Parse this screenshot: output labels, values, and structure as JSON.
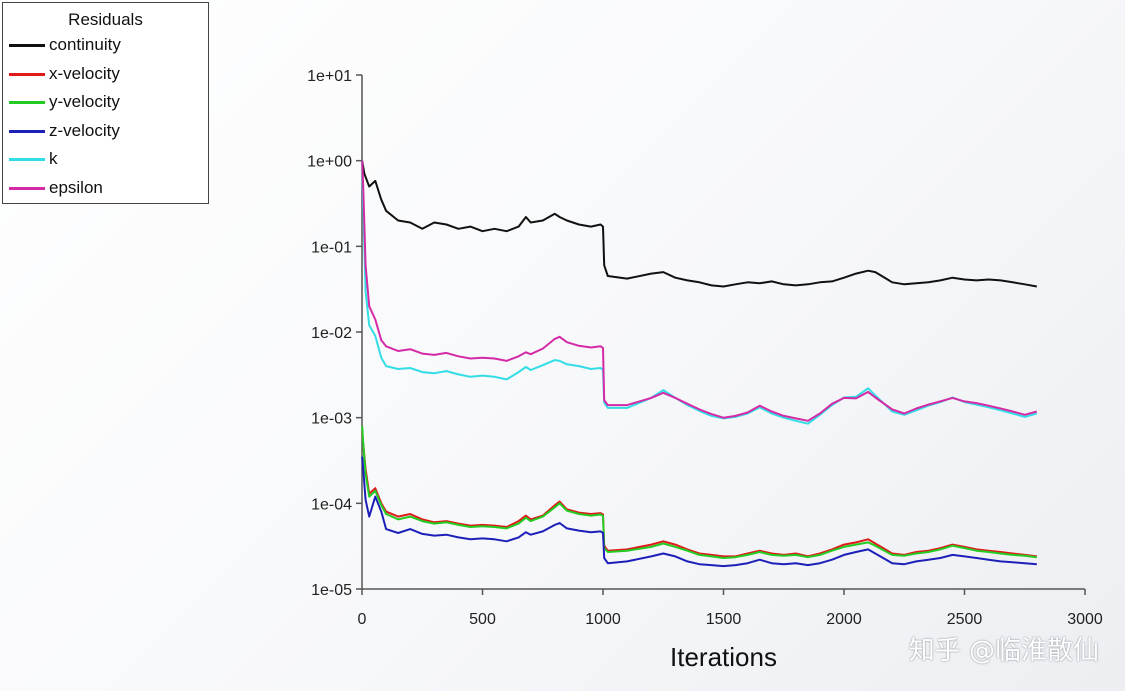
{
  "legend": {
    "title": "Residuals",
    "items": [
      {
        "label": "continuity",
        "color": "#111111"
      },
      {
        "label": "x-velocity",
        "color": "#e01a1a"
      },
      {
        "label": "y-velocity",
        "color": "#22cc22"
      },
      {
        "label": "z-velocity",
        "color": "#1c20b8"
      },
      {
        "label": "k",
        "color": "#33dde6"
      },
      {
        "label": "epsilon",
        "color": "#d42aa6"
      }
    ]
  },
  "watermark": "知乎 @临淮散仙",
  "chart_data": {
    "type": "line",
    "xlabel": "Iterations",
    "ylabel": "",
    "yscale": "log",
    "xlim": [
      0,
      3000
    ],
    "ylim": [
      1e-05,
      10
    ],
    "x_ticks": [
      0,
      500,
      1000,
      1500,
      2000,
      2500,
      3000
    ],
    "x_tick_labels": [
      "0",
      "500",
      "1000",
      "1500",
      "2000",
      "2500",
      "3000"
    ],
    "y_ticks": [
      1e-05,
      0.0001,
      0.001,
      0.01,
      0.1,
      1,
      10
    ],
    "y_tick_labels": [
      "1e-05",
      "1e-04",
      "1e-03",
      "1e-02",
      "1e-01",
      "1e+00",
      "1e+01"
    ],
    "legend_position": "top-left",
    "series": [
      {
        "name": "continuity",
        "color": "#111111",
        "x": [
          1,
          10,
          30,
          55,
          80,
          100,
          150,
          200,
          250,
          300,
          350,
          400,
          450,
          500,
          550,
          600,
          650,
          680,
          700,
          750,
          800,
          820,
          850,
          900,
          950,
          990,
          1000,
          1005,
          1020,
          1100,
          1200,
          1250,
          1300,
          1350,
          1400,
          1450,
          1500,
          1550,
          1600,
          1650,
          1700,
          1750,
          1800,
          1850,
          1900,
          1950,
          2000,
          2050,
          2100,
          2130,
          2200,
          2250,
          2300,
          2350,
          2400,
          2450,
          2500,
          2550,
          2600,
          2650,
          2700,
          2750,
          2800
        ],
        "y": [
          1.0,
          0.7,
          0.5,
          0.58,
          0.35,
          0.26,
          0.2,
          0.19,
          0.16,
          0.19,
          0.18,
          0.16,
          0.17,
          0.15,
          0.16,
          0.15,
          0.17,
          0.22,
          0.19,
          0.2,
          0.24,
          0.22,
          0.2,
          0.18,
          0.17,
          0.18,
          0.17,
          0.06,
          0.045,
          0.042,
          0.048,
          0.05,
          0.043,
          0.04,
          0.038,
          0.035,
          0.034,
          0.036,
          0.038,
          0.037,
          0.039,
          0.036,
          0.035,
          0.036,
          0.038,
          0.039,
          0.043,
          0.048,
          0.052,
          0.05,
          0.038,
          0.036,
          0.037,
          0.038,
          0.04,
          0.043,
          0.041,
          0.04,
          0.041,
          0.04,
          0.038,
          0.036,
          0.034
        ]
      },
      {
        "name": "x-velocity",
        "color": "#e01a1a",
        "x": [
          1,
          5,
          15,
          30,
          55,
          80,
          100,
          150,
          200,
          250,
          300,
          350,
          400,
          450,
          500,
          550,
          600,
          650,
          680,
          700,
          750,
          800,
          820,
          850,
          900,
          950,
          990,
          1000,
          1005,
          1020,
          1100,
          1200,
          1250,
          1300,
          1350,
          1400,
          1450,
          1500,
          1550,
          1600,
          1650,
          1700,
          1750,
          1800,
          1850,
          1900,
          1950,
          2000,
          2050,
          2100,
          2130,
          2200,
          2250,
          2300,
          2350,
          2400,
          2450,
          2500,
          2550,
          2600,
          2650,
          2700,
          2750,
          2800
        ],
        "y": [
          0.0007,
          0.0005,
          0.00025,
          0.00013,
          0.00015,
          0.0001,
          8e-05,
          7e-05,
          7.5e-05,
          6.5e-05,
          6e-05,
          6.2e-05,
          5.8e-05,
          5.5e-05,
          5.6e-05,
          5.5e-05,
          5.3e-05,
          6.2e-05,
          7.2e-05,
          6.5e-05,
          7.2e-05,
          9.5e-05,
          0.000105,
          8.5e-05,
          7.8e-05,
          7.5e-05,
          7.7e-05,
          7.4e-05,
          3.2e-05,
          2.8e-05,
          2.9e-05,
          3.3e-05,
          3.6e-05,
          3.3e-05,
          2.9e-05,
          2.6e-05,
          2.5e-05,
          2.4e-05,
          2.4e-05,
          2.6e-05,
          2.8e-05,
          2.6e-05,
          2.5e-05,
          2.6e-05,
          2.4e-05,
          2.6e-05,
          2.9e-05,
          3.3e-05,
          3.5e-05,
          3.8e-05,
          3.4e-05,
          2.6e-05,
          2.5e-05,
          2.7e-05,
          2.8e-05,
          3e-05,
          3.3e-05,
          3.1e-05,
          2.9e-05,
          2.8e-05,
          2.7e-05,
          2.6e-05,
          2.5e-05,
          2.4e-05
        ]
      },
      {
        "name": "y-velocity",
        "color": "#22cc22",
        "x": [
          1,
          5,
          15,
          30,
          55,
          80,
          100,
          150,
          200,
          250,
          300,
          350,
          400,
          450,
          500,
          550,
          600,
          650,
          680,
          700,
          750,
          800,
          820,
          850,
          900,
          950,
          990,
          1000,
          1005,
          1020,
          1100,
          1200,
          1250,
          1300,
          1350,
          1400,
          1450,
          1500,
          1550,
          1600,
          1650,
          1700,
          1750,
          1800,
          1850,
          1900,
          1950,
          2000,
          2050,
          2100,
          2130,
          2200,
          2250,
          2300,
          2350,
          2400,
          2450,
          2500,
          2550,
          2600,
          2650,
          2700,
          2750,
          2800
        ],
        "y": [
          0.0008,
          0.0005,
          0.00022,
          0.00012,
          0.00014,
          9.5e-05,
          7.5e-05,
          6.5e-05,
          7e-05,
          6.2e-05,
          5.8e-05,
          6e-05,
          5.6e-05,
          5.3e-05,
          5.4e-05,
          5.3e-05,
          5.1e-05,
          5.8e-05,
          6.8e-05,
          6.2e-05,
          7e-05,
          9e-05,
          0.0001,
          8.2e-05,
          7.5e-05,
          7.2e-05,
          7.4e-05,
          7.1e-05,
          3e-05,
          2.7e-05,
          2.8e-05,
          3.1e-05,
          3.4e-05,
          3.1e-05,
          2.8e-05,
          2.5e-05,
          2.4e-05,
          2.3e-05,
          2.35e-05,
          2.5e-05,
          2.7e-05,
          2.5e-05,
          2.45e-05,
          2.5e-05,
          2.35e-05,
          2.5e-05,
          2.8e-05,
          3.1e-05,
          3.3e-05,
          3.5e-05,
          3.2e-05,
          2.5e-05,
          2.45e-05,
          2.6e-05,
          2.7e-05,
          2.9e-05,
          3.2e-05,
          3e-05,
          2.8e-05,
          2.7e-05,
          2.6e-05,
          2.5e-05,
          2.45e-05,
          2.35e-05
        ]
      },
      {
        "name": "z-velocity",
        "color": "#1c20b8",
        "x": [
          1,
          5,
          15,
          30,
          55,
          80,
          100,
          150,
          200,
          250,
          300,
          350,
          400,
          450,
          500,
          550,
          600,
          650,
          680,
          700,
          750,
          800,
          820,
          850,
          900,
          950,
          990,
          1000,
          1005,
          1020,
          1100,
          1200,
          1250,
          1300,
          1350,
          1400,
          1450,
          1500,
          1550,
          1600,
          1650,
          1700,
          1750,
          1800,
          1850,
          1900,
          1950,
          2000,
          2050,
          2100,
          2130,
          2200,
          2250,
          2300,
          2350,
          2400,
          2450,
          2500,
          2550,
          2600,
          2650,
          2700,
          2750,
          2800
        ],
        "y": [
          0.00035,
          0.00025,
          0.00011,
          7e-05,
          0.00012,
          8e-05,
          5e-05,
          4.5e-05,
          5e-05,
          4.4e-05,
          4.2e-05,
          4.3e-05,
          4e-05,
          3.8e-05,
          3.9e-05,
          3.8e-05,
          3.6e-05,
          4e-05,
          4.6e-05,
          4.3e-05,
          4.7e-05,
          5.6e-05,
          5.9e-05,
          5.1e-05,
          4.8e-05,
          4.6e-05,
          4.7e-05,
          4.5e-05,
          2.3e-05,
          2e-05,
          2.1e-05,
          2.4e-05,
          2.6e-05,
          2.4e-05,
          2.1e-05,
          1.95e-05,
          1.9e-05,
          1.85e-05,
          1.9e-05,
          2e-05,
          2.2e-05,
          2e-05,
          1.95e-05,
          2e-05,
          1.9e-05,
          2e-05,
          2.2e-05,
          2.5e-05,
          2.7e-05,
          2.9e-05,
          2.6e-05,
          2e-05,
          1.95e-05,
          2.1e-05,
          2.2e-05,
          2.3e-05,
          2.5e-05,
          2.4e-05,
          2.3e-05,
          2.2e-05,
          2.1e-05,
          2.05e-05,
          2e-05,
          1.95e-05
        ]
      },
      {
        "name": "k",
        "color": "#33dde6",
        "x": [
          1,
          5,
          15,
          30,
          55,
          80,
          100,
          150,
          200,
          250,
          300,
          350,
          400,
          450,
          500,
          550,
          600,
          650,
          680,
          700,
          750,
          800,
          820,
          850,
          900,
          950,
          990,
          1000,
          1005,
          1020,
          1100,
          1200,
          1250,
          1300,
          1350,
          1400,
          1450,
          1500,
          1550,
          1600,
          1650,
          1700,
          1750,
          1800,
          1850,
          1900,
          1950,
          2000,
          2050,
          2100,
          2130,
          2200,
          2250,
          2300,
          2350,
          2400,
          2450,
          2500,
          2550,
          2600,
          2650,
          2700,
          2750,
          2800
        ],
        "y": [
          1.0,
          0.3,
          0.03,
          0.012,
          0.009,
          0.005,
          0.004,
          0.0037,
          0.0038,
          0.0034,
          0.0033,
          0.0035,
          0.0032,
          0.003,
          0.0031,
          0.003,
          0.0028,
          0.0034,
          0.0039,
          0.0036,
          0.0041,
          0.0047,
          0.0046,
          0.0042,
          0.004,
          0.0037,
          0.0038,
          0.0036,
          0.0015,
          0.0013,
          0.0013,
          0.0017,
          0.0021,
          0.0017,
          0.0014,
          0.0012,
          0.00105,
          0.00098,
          0.00102,
          0.00112,
          0.00132,
          0.00112,
          0.001,
          0.00092,
          0.00085,
          0.00108,
          0.0014,
          0.00172,
          0.00175,
          0.0022,
          0.00182,
          0.00118,
          0.00108,
          0.00122,
          0.00138,
          0.00152,
          0.00172,
          0.00152,
          0.00142,
          0.00132,
          0.00122,
          0.00112,
          0.00102,
          0.00112
        ]
      },
      {
        "name": "epsilon",
        "color": "#d42aa6",
        "x": [
          1,
          5,
          15,
          30,
          55,
          80,
          100,
          150,
          200,
          250,
          300,
          350,
          400,
          450,
          500,
          550,
          600,
          650,
          680,
          700,
          750,
          800,
          820,
          850,
          900,
          950,
          990,
          1000,
          1005,
          1020,
          1100,
          1200,
          1250,
          1300,
          1350,
          1400,
          1450,
          1500,
          1550,
          1600,
          1650,
          1700,
          1750,
          1800,
          1850,
          1900,
          1950,
          2000,
          2050,
          2100,
          2130,
          2200,
          2250,
          2300,
          2350,
          2400,
          2450,
          2500,
          2550,
          2600,
          2650,
          2700,
          2750,
          2800
        ],
        "y": [
          1.0,
          0.5,
          0.06,
          0.02,
          0.014,
          0.008,
          0.0068,
          0.006,
          0.0063,
          0.0056,
          0.0054,
          0.0057,
          0.0052,
          0.0049,
          0.005,
          0.0049,
          0.0046,
          0.0052,
          0.0058,
          0.0055,
          0.0064,
          0.0083,
          0.0088,
          0.0076,
          0.0069,
          0.0066,
          0.0068,
          0.0065,
          0.0016,
          0.0014,
          0.0014,
          0.0017,
          0.00195,
          0.0017,
          0.00145,
          0.00125,
          0.0011,
          0.001,
          0.00105,
          0.00115,
          0.00138,
          0.00118,
          0.00105,
          0.00098,
          0.00092,
          0.00112,
          0.00145,
          0.0017,
          0.00168,
          0.002,
          0.00172,
          0.00125,
          0.00112,
          0.00128,
          0.00142,
          0.00155,
          0.0017,
          0.00155,
          0.00148,
          0.00138,
          0.00128,
          0.00118,
          0.00108,
          0.00118
        ]
      }
    ]
  }
}
